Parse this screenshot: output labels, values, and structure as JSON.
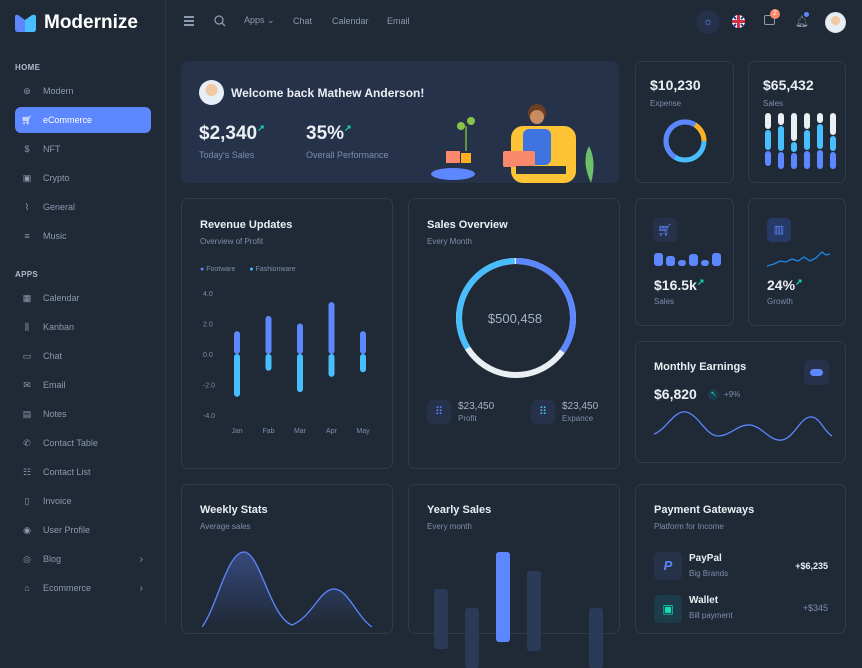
{
  "app": {
    "name": "Modernize"
  },
  "sidebar": {
    "home_label": "HOME",
    "home_items": [
      {
        "label": "Modern",
        "icon": "aperture-icon"
      },
      {
        "label": "eCommerce",
        "icon": "shopping-cart-icon",
        "active": true
      },
      {
        "label": "NFT",
        "icon": "currency-dollar-icon"
      },
      {
        "label": "Crypto",
        "icon": "cpu-icon"
      },
      {
        "label": "General",
        "icon": "activity-heartbeat-icon"
      },
      {
        "label": "Music",
        "icon": "playlist-icon"
      }
    ],
    "apps_label": "APPS",
    "app_items": [
      {
        "label": "Calendar",
        "icon": "calendar-icon"
      },
      {
        "label": "Kanban",
        "icon": "kanban-icon"
      },
      {
        "label": "Chat",
        "icon": "message-icon"
      },
      {
        "label": "Email",
        "icon": "mail-icon"
      },
      {
        "label": "Notes",
        "icon": "notes-icon"
      },
      {
        "label": "Contact Table",
        "icon": "phone-icon"
      },
      {
        "label": "Contact List",
        "icon": "list-details-icon"
      },
      {
        "label": "Invoice",
        "icon": "file-text-icon"
      },
      {
        "label": "User Profile",
        "icon": "user-circle-icon"
      },
      {
        "label": "Blog",
        "icon": "chart-donut-icon",
        "chevron": true
      },
      {
        "label": "Ecommerce",
        "icon": "basket-icon",
        "chevron": true
      }
    ]
  },
  "header": {
    "apps": "Apps",
    "chat": "Chat",
    "calendar": "Calendar",
    "email": "Email",
    "cart_badge": "2"
  },
  "welcome": {
    "title": "Welcome back Mathew Anderson!",
    "sales_value": "$2,340",
    "sales_label": "Today's Sales",
    "perf_value": "35%",
    "perf_label": "Overall Performance"
  },
  "expense": {
    "value": "$10,230",
    "label": "Expense",
    "donut": [
      {
        "value": 75,
        "color": "#5d87ff"
      },
      {
        "value": 25,
        "color": "#ffae1f"
      }
    ]
  },
  "sales_card": {
    "value": "$65,432",
    "label": "Sales"
  },
  "revenue": {
    "title": "Revenue Updates",
    "subtitle": "Overview of Profit"
  },
  "sales_overview": {
    "title": "Sales Overview",
    "subtitle": "Every Month",
    "total": "$500,458",
    "profit_value": "$23,450",
    "profit_label": "Profit",
    "expense_value": "$23,450",
    "expense_label": "Expance"
  },
  "small_sales": {
    "value": "$16.5k",
    "label": "Sales"
  },
  "growth": {
    "value": "24%",
    "label": "Growth"
  },
  "monthly": {
    "title": "Monthly Earnings",
    "value": "$6,820",
    "change": "+9%"
  },
  "weekly": {
    "title": "Weekly Stats",
    "subtitle": "Average sales"
  },
  "yearly": {
    "title": "Yearly Sales",
    "subtitle": "Every month"
  },
  "payments": {
    "title": "Payment Gateways",
    "subtitle": "Platform for Income",
    "items": [
      {
        "name": "PayPal",
        "desc": "Big Brands",
        "amount": "+$6,235"
      },
      {
        "name": "Wallet",
        "desc": "Bill payment",
        "amount": "+$345"
      }
    ]
  },
  "colors": {
    "primary": "#5d87ff",
    "secondary": "#49beff",
    "success": "#13deb9",
    "warning": "#ffae1f"
  },
  "chart_data": [
    {
      "type": "bar",
      "title": "Revenue Updates",
      "categories": [
        "Jan",
        "Fab",
        "Mar",
        "Apr",
        "May"
      ],
      "series": [
        {
          "name": "Footware",
          "values": [
            1.5,
            2.5,
            2.0,
            3.4,
            1.5
          ]
        },
        {
          "name": "Fashionware",
          "values": [
            -2.8,
            -1.1,
            -2.5,
            -1.5,
            -1.2
          ]
        }
      ],
      "yticks": [
        "4.0",
        "2.0",
        "0.0",
        "-2.0",
        "-4.0"
      ],
      "ylim": [
        -4,
        4
      ],
      "legend": "top-left"
    }
  ]
}
